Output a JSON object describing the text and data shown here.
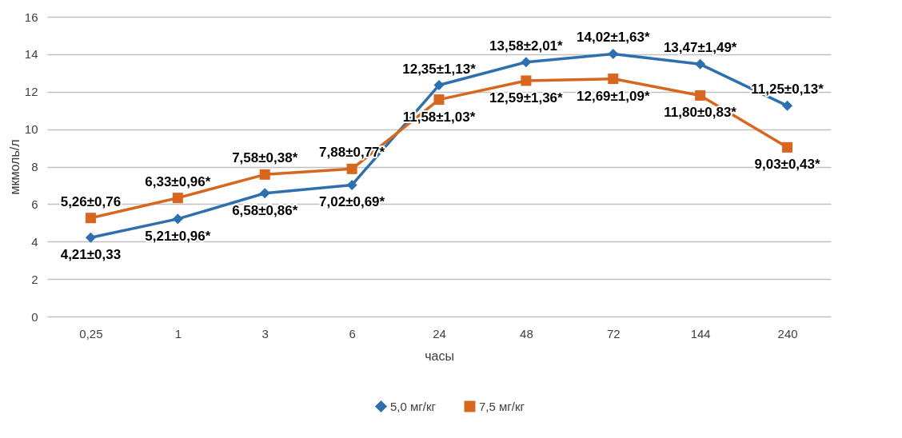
{
  "chart_data": {
    "type": "line",
    "xlabel": "часы",
    "ylabel": "мкмоль/л",
    "categories": [
      "0,25",
      "1",
      "3",
      "6",
      "24",
      "48",
      "72",
      "144",
      "240"
    ],
    "series": [
      {
        "name": "5,0 мг/кг",
        "color": "#2e6fad",
        "marker": "diamond",
        "values": [
          4.21,
          5.21,
          6.58,
          7.02,
          12.35,
          13.58,
          14.02,
          13.47,
          11.25
        ],
        "value_labels": [
          "4,21±0,33",
          "5,21±0,96*",
          "6,58±0,86*",
          "7,02±0,69*",
          "12,35±1,13*",
          "13,58±2,01*",
          "14,02±1,63*",
          "13,47±1,49*",
          "11,25±0,13*"
        ]
      },
      {
        "name": "7,5 мг/кг",
        "color": "#d8661f",
        "marker": "square",
        "values": [
          5.26,
          6.33,
          7.58,
          7.88,
          11.58,
          12.59,
          12.69,
          11.8,
          9.03
        ],
        "value_labels": [
          "5,26±0,76",
          "6,33±0,96*",
          "7,58±0,38*",
          "7,88±0,77*",
          "11,58±1,03*",
          "12,59±1,36*",
          "12,69±1,09*",
          "11,80±0,83*",
          "9,03±0,43*"
        ]
      }
    ],
    "ylim": [
      0,
      16
    ],
    "yticks": [
      0,
      2,
      4,
      6,
      8,
      10,
      12,
      14,
      16
    ],
    "grid": "y",
    "legend": "bottom",
    "line_style": "solid"
  }
}
